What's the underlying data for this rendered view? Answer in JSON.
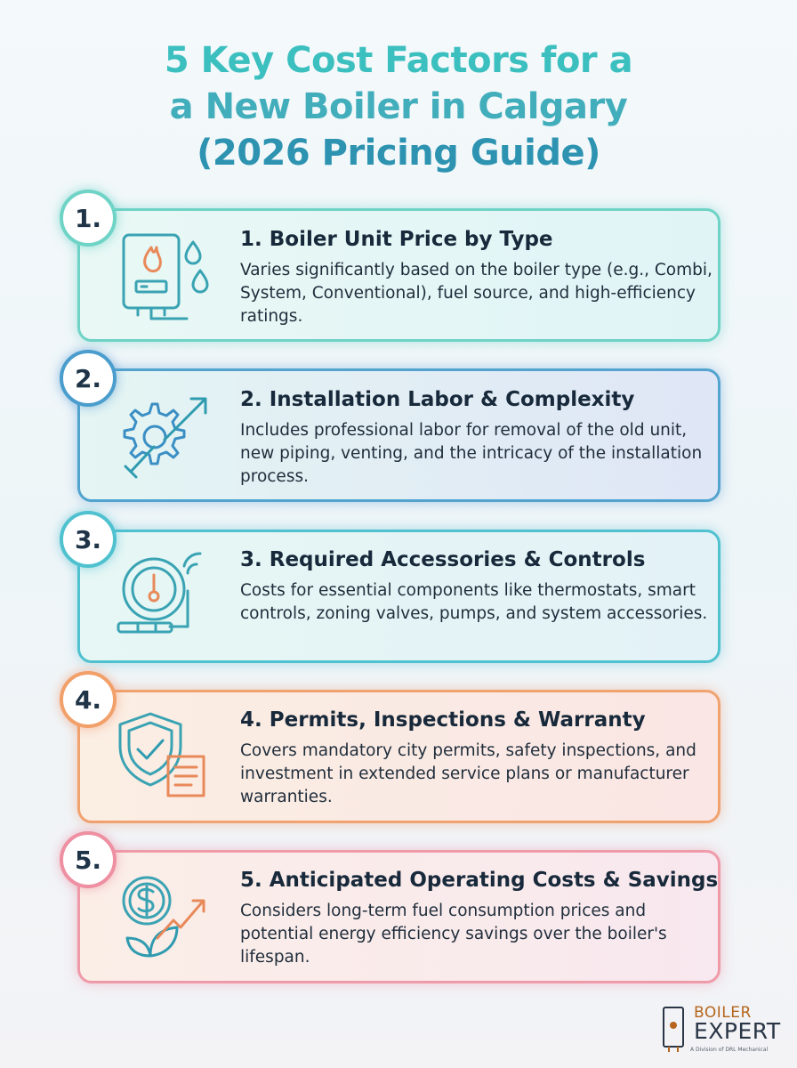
{
  "title": {
    "line1": "5 Key Cost Factors for a",
    "line2": "a New Boiler in Calgary",
    "line3": "(2026 Pricing Guide)"
  },
  "factors": [
    {
      "badge": "1.",
      "title": "1. Boiler Unit Price by Type",
      "description": "Varies significantly based on the boiler type (e.g., Combi, System, Conventional), fuel source, and high-efficiency ratings.",
      "icon": "boiler-icon"
    },
    {
      "badge": "2.",
      "title": "2. Installation Labor & Complexity",
      "description": "Includes professional labor for removal of the old unit, new piping, venting, and the intricacy of the installation process.",
      "icon": "gear-wrench-icon"
    },
    {
      "badge": "3.",
      "title": "3. Required Accessories & Controls",
      "description": "Costs for essential components like thermostats, smart controls, zoning valves, pumps, and system accessories.",
      "icon": "thermostat-icon"
    },
    {
      "badge": "4.",
      "title": "4. Permits, Inspections & Warranty",
      "description": "Covers mandatory city permits, safety inspections, and investment in extended service plans or manufacturer warranties.",
      "icon": "shield-check-icon"
    },
    {
      "badge": "5.",
      "title": "5. Anticipated Operating Costs & Savings",
      "description": "Considers long-term fuel consumption prices and potential energy efficiency savings over the boiler's lifespan.",
      "icon": "dollar-growth-icon"
    }
  ],
  "logo": {
    "word1": "BOILER",
    "word2": "EXPERT",
    "tagline": "A Division of DRL Mechanical"
  },
  "colors": {
    "title_teal": "#3cbfbf",
    "title_blue": "#2d93b1",
    "card1": "#6fd3c6",
    "card2": "#52a4cf",
    "card3": "#4fc1cf",
    "card4": "#f0a26f",
    "card5": "#ef9aa9"
  }
}
